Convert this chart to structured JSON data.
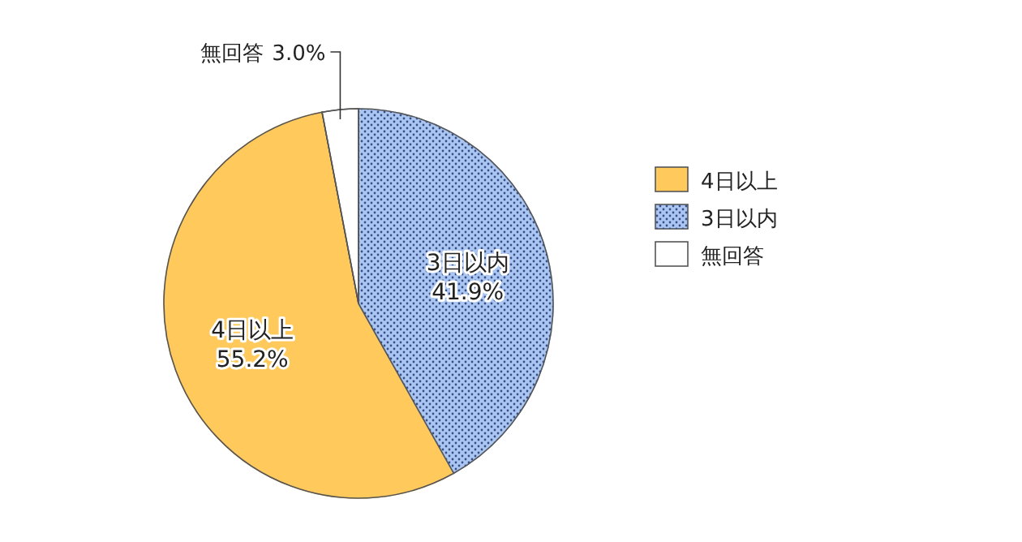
{
  "chart_data": {
    "type": "pie",
    "categories": [
      "4日以上",
      "3日以内",
      "無回答"
    ],
    "values": [
      55.2,
      41.9,
      3.0
    ],
    "colors": [
      "#ffc95c",
      "#aac6f2",
      "#ffffff"
    ],
    "value_labels": [
      "55.2%",
      "41.9%",
      "3.0%"
    ],
    "legend": "right"
  }
}
